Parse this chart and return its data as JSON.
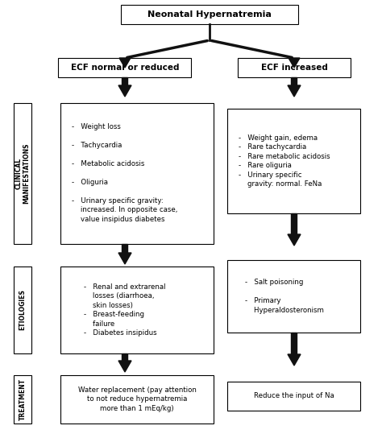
{
  "title": "Neonatal Hypernatremia",
  "left_branch_label": "ECF normal or reduced",
  "right_branch_label": "ECF increased",
  "row_labels": [
    "CLINICAL\nMANIFESTATIONS",
    "ETIOLOGIES",
    "TREATMENT"
  ],
  "left_clinical": "-   Weight loss\n\n-   Tachycardia\n\n-   Metabolic acidosis\n\n-   Oliguria\n\n-   Urinary specific gravity:\n    increased. In opposite case,\n    value insipidus diabetes",
  "right_clinical": "-   Weight gain, edema\n-   Rare tachycardia\n-   Rare metabolic acidosis\n-   Rare oliguria\n-   Urinary specific\n    gravity: normal. FeNa",
  "left_etio": "-   Renal and extrarenal\n    losses (diarrhoea,\n    skin losses)\n-   Breast-feeding\n    failure\n-   Diabetes insipidus",
  "right_etio": "-   Salt poisoning\n\n-   Primary\n    Hyperaldosteronism",
  "left_treat": "Water replacement (pay attention\nto not reduce hypernatremia\nmore than 1 mEq/kg)",
  "right_treat": "Reduce the input of Na",
  "bg_color": "#ffffff",
  "box_color": "#ffffff",
  "box_edge": "#000000",
  "text_color": "#000000",
  "arrow_color": "#111111",
  "font_size": 6.2,
  "title_font_size": 8.0,
  "branch_font_size": 7.5
}
